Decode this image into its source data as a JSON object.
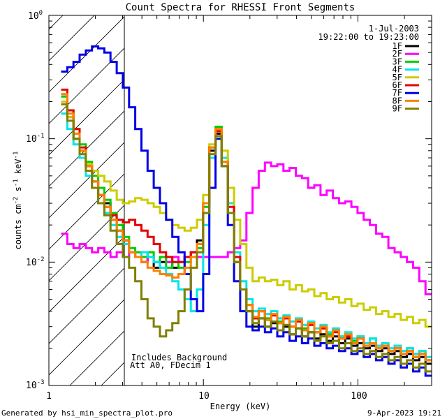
{
  "chart_data": {
    "type": "line",
    "title": "Count Spectra for RHESSI Front Segments",
    "xlabel": "Energy (keV)",
    "ylabel_parts": {
      "pre": "counts cm",
      "exp1": "-2",
      "mid": " s",
      "exp2": "-1",
      "mid2": " keV",
      "exp3": "-1"
    },
    "xscale": "log",
    "yscale": "log",
    "xlim": [
      1,
      300
    ],
    "ylim": [
      0.001,
      1
    ],
    "x_ticks": [
      {
        "value": 1,
        "label": "1"
      },
      {
        "value": 10,
        "label": "10"
      },
      {
        "value": 100,
        "label": "100"
      }
    ],
    "y_ticks": [
      {
        "value": 0.001,
        "base": "10",
        "exp": "-3"
      },
      {
        "value": 0.01,
        "base": "10",
        "exp": "-2"
      },
      {
        "value": 0.1,
        "base": "10",
        "exp": "-1"
      },
      {
        "value": 1,
        "base": "10",
        "exp": "0"
      }
    ],
    "date": "1-Jul-2003",
    "time_range": "19:22:00 to 19:23:00",
    "hatched_region_keV": [
      1,
      3
    ],
    "annotations": [
      "Includes Background",
      "Att A0, FDecim 1"
    ],
    "footer_left": "Generated by hsi_min_spectra_plot.pro",
    "footer_right": "9-Apr-2023 19:21",
    "series": [
      {
        "name": "1F",
        "color": "#000000",
        "values": [
          0.2,
          0.15,
          0.1,
          0.08,
          0.06,
          0.045,
          0.035,
          0.03,
          0.022,
          0.018,
          0.015,
          0.012,
          0.011,
          0.01,
          0.011,
          0.009,
          0.01,
          0.01,
          0.009,
          0.01,
          0.011,
          0.012,
          0.015,
          0.03,
          0.08,
          0.11,
          0.06,
          0.025,
          0.01,
          0.006,
          0.004,
          0.003,
          0.0035,
          0.003,
          0.0032,
          0.0028,
          0.003,
          0.0026,
          0.0029,
          0.0025,
          0.0027,
          0.0024,
          0.0026,
          0.0023,
          0.0025,
          0.0022,
          0.0024,
          0.0021,
          0.0022,
          0.002,
          0.0021,
          0.0019,
          0.002,
          0.0018,
          0.0019,
          0.0017,
          0.0018,
          0.0016,
          0.0017,
          0.0015
        ]
      },
      {
        "name": "2F",
        "color": "#ff00ff",
        "values": [
          0.017,
          0.014,
          0.013,
          0.014,
          0.013,
          0.012,
          0.013,
          0.012,
          0.011,
          0.012,
          0.011,
          0.012,
          0.011,
          0.01,
          0.011,
          0.01,
          0.011,
          0.01,
          0.011,
          0.01,
          0.011,
          0.011,
          0.011,
          0.011,
          0.011,
          0.011,
          0.011,
          0.012,
          0.013,
          0.015,
          0.025,
          0.04,
          0.055,
          0.064,
          0.06,
          0.062,
          0.055,
          0.058,
          0.05,
          0.048,
          0.04,
          0.042,
          0.035,
          0.038,
          0.033,
          0.03,
          0.031,
          0.028,
          0.025,
          0.022,
          0.02,
          0.017,
          0.016,
          0.013,
          0.012,
          0.011,
          0.01,
          0.009,
          0.007,
          0.0055
        ]
      },
      {
        "name": "3F",
        "color": "#00cc00",
        "values": [
          0.22,
          0.17,
          0.12,
          0.09,
          0.065,
          0.05,
          0.04,
          0.032,
          0.025,
          0.02,
          0.016,
          0.013,
          0.012,
          0.011,
          0.012,
          0.01,
          0.011,
          0.009,
          0.01,
          0.009,
          0.01,
          0.011,
          0.013,
          0.028,
          0.085,
          0.125,
          0.065,
          0.025,
          0.01,
          0.006,
          0.0045,
          0.0035,
          0.004,
          0.0035,
          0.0037,
          0.0033,
          0.0035,
          0.003,
          0.0034,
          0.0029,
          0.0031,
          0.0027,
          0.0029,
          0.0026,
          0.0028,
          0.0025,
          0.0026,
          0.0023,
          0.0025,
          0.0022,
          0.0024,
          0.0021,
          0.0022,
          0.0019,
          0.0021,
          0.0018,
          0.002,
          0.0017,
          0.0019,
          0.0016
        ]
      },
      {
        "name": "4F",
        "color": "#00e5e5",
        "values": [
          0.16,
          0.12,
          0.09,
          0.07,
          0.05,
          0.04,
          0.03,
          0.025,
          0.02,
          0.016,
          0.014,
          0.012,
          0.011,
          0.012,
          0.011,
          0.01,
          0.009,
          0.008,
          0.007,
          0.006,
          0.005,
          0.004,
          0.006,
          0.02,
          0.07,
          0.12,
          0.07,
          0.03,
          0.012,
          0.007,
          0.005,
          0.004,
          0.0042,
          0.0038,
          0.004,
          0.0035,
          0.0037,
          0.0033,
          0.0035,
          0.0031,
          0.0033,
          0.0029,
          0.0031,
          0.0027,
          0.0029,
          0.0025,
          0.0027,
          0.0024,
          0.0025,
          0.0022,
          0.0024,
          0.0021,
          0.0022,
          0.002,
          0.0021,
          0.0019,
          0.002,
          0.0018,
          0.0019,
          0.0017
        ]
      },
      {
        "name": "5F",
        "color": "#cccc00",
        "values": [
          0.2,
          0.15,
          0.11,
          0.08,
          0.062,
          0.055,
          0.05,
          0.045,
          0.038,
          0.032,
          0.03,
          0.031,
          0.033,
          0.032,
          0.03,
          0.028,
          0.025,
          0.022,
          0.02,
          0.019,
          0.018,
          0.019,
          0.022,
          0.035,
          0.09,
          0.12,
          0.08,
          0.04,
          0.022,
          0.014,
          0.009,
          0.007,
          0.0075,
          0.007,
          0.0072,
          0.0065,
          0.007,
          0.006,
          0.0065,
          0.0058,
          0.006,
          0.0053,
          0.0056,
          0.005,
          0.0052,
          0.0047,
          0.005,
          0.0044,
          0.0046,
          0.0041,
          0.0043,
          0.0038,
          0.004,
          0.0036,
          0.0038,
          0.0034,
          0.0036,
          0.0032,
          0.0034,
          0.003
        ]
      },
      {
        "name": "6F",
        "color": "#e50000",
        "values": [
          0.25,
          0.17,
          0.12,
          0.085,
          0.06,
          0.045,
          0.035,
          0.028,
          0.024,
          0.022,
          0.021,
          0.022,
          0.02,
          0.018,
          0.016,
          0.014,
          0.012,
          0.011,
          0.01,
          0.01,
          0.011,
          0.012,
          0.014,
          0.03,
          0.085,
          0.115,
          0.065,
          0.028,
          0.011,
          0.006,
          0.0045,
          0.0035,
          0.004,
          0.0034,
          0.0037,
          0.0032,
          0.0035,
          0.003,
          0.0033,
          0.0028,
          0.0031,
          0.0027,
          0.0029,
          0.0025,
          0.0027,
          0.0024,
          0.0025,
          0.0022,
          0.0024,
          0.0021,
          0.0022,
          0.002,
          0.0021,
          0.0019,
          0.002,
          0.0018,
          0.0019,
          0.0017,
          0.0018,
          0.0016
        ]
      },
      {
        "name": "7F",
        "color": "#0000e5",
        "values": [
          0.35,
          0.38,
          0.42,
          0.48,
          0.52,
          0.56,
          0.54,
          0.5,
          0.42,
          0.34,
          0.26,
          0.18,
          0.12,
          0.08,
          0.055,
          0.04,
          0.03,
          0.022,
          0.016,
          0.012,
          0.008,
          0.005,
          0.004,
          0.008,
          0.04,
          0.1,
          0.06,
          0.02,
          0.007,
          0.004,
          0.003,
          0.0028,
          0.003,
          0.0027,
          0.0029,
          0.0025,
          0.0027,
          0.0023,
          0.0025,
          0.0022,
          0.0024,
          0.0021,
          0.0022,
          0.002,
          0.0021,
          0.0019,
          0.002,
          0.0018,
          0.0019,
          0.0017,
          0.0018,
          0.0016,
          0.0017,
          0.0015,
          0.0016,
          0.0014,
          0.0015,
          0.0013,
          0.0014,
          0.0012
        ]
      },
      {
        "name": "8F",
        "color": "#ff8000",
        "values": [
          0.23,
          0.16,
          0.11,
          0.08,
          0.06,
          0.045,
          0.035,
          0.028,
          0.022,
          0.018,
          0.015,
          0.012,
          0.011,
          0.01,
          0.009,
          0.0085,
          0.008,
          0.0078,
          0.0075,
          0.008,
          0.009,
          0.011,
          0.014,
          0.03,
          0.085,
          0.12,
          0.065,
          0.025,
          0.01,
          0.006,
          0.0045,
          0.0036,
          0.004,
          0.0034,
          0.0038,
          0.0032,
          0.0036,
          0.003,
          0.0034,
          0.0028,
          0.0032,
          0.0027,
          0.003,
          0.0025,
          0.0028,
          0.0024,
          0.0026,
          0.0022,
          0.0024,
          0.0021,
          0.0022,
          0.002,
          0.0021,
          0.0019,
          0.002,
          0.0018,
          0.0019,
          0.0017,
          0.0018,
          0.0016
        ]
      },
      {
        "name": "9F",
        "color": "#808000",
        "values": [
          0.19,
          0.14,
          0.1,
          0.075,
          0.055,
          0.04,
          0.03,
          0.024,
          0.018,
          0.014,
          0.011,
          0.009,
          0.007,
          0.005,
          0.0035,
          0.003,
          0.0025,
          0.0028,
          0.0032,
          0.004,
          0.006,
          0.009,
          0.012,
          0.025,
          0.075,
          0.105,
          0.06,
          0.025,
          0.01,
          0.006,
          0.004,
          0.0032,
          0.0035,
          0.003,
          0.0033,
          0.0028,
          0.0031,
          0.0026,
          0.0029,
          0.0025,
          0.0027,
          0.0023,
          0.0025,
          0.0022,
          0.0023,
          0.002,
          0.0022,
          0.0019,
          0.002,
          0.0018,
          0.0019,
          0.0017,
          0.0018,
          0.0016,
          0.0017,
          0.0015,
          0.0016,
          0.0014,
          0.0015,
          0.0013
        ]
      }
    ]
  }
}
